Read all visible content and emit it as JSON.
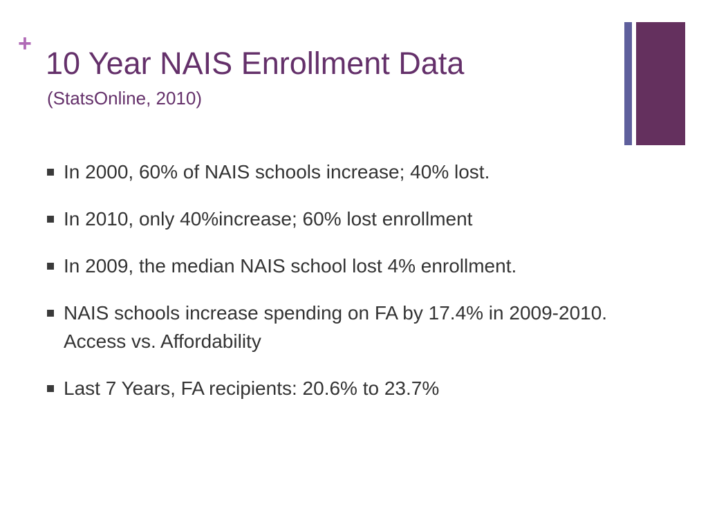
{
  "slide": {
    "plus_glyph": "+",
    "title": "10 Year NAIS Enrollment Data",
    "subtitle": "(StatsOnline, 2010)",
    "bullets": [
      {
        "text": "In 2000, 60% of NAIS schools increase; 40% lost."
      },
      {
        "text": "In 2010, only 40%increase; 60% lost enrollment"
      },
      {
        "text": "In 2009, the median NAIS school lost 4% enrollment."
      },
      {
        "text": "NAIS schools increase spending on FA by 17.4% in 2009-2010.  Access vs. Affordability"
      },
      {
        "text": "Last 7 Years, FA recipients: 20.6% to 23.7%"
      }
    ]
  },
  "colors": {
    "title": "#64306a",
    "plus": "#b06ab6",
    "accent_bar_thin": "#5e5f9c",
    "accent_bar_thick": "#64305e",
    "body_text": "#333333"
  }
}
